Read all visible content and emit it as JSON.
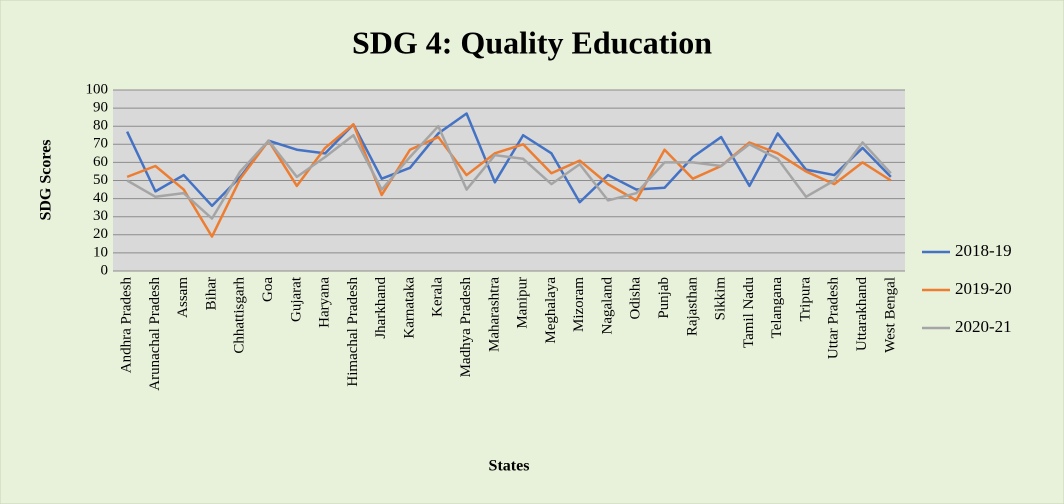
{
  "chart_data": {
    "type": "line",
    "title": "SDG 4: Quality Education",
    "y_label": "SDG Scores",
    "x_label": "States",
    "categories": [
      "Andhra Pradesh",
      "Arunachal Pradesh",
      "Assam",
      "Bihar",
      "Chhattisgarh",
      "Goa",
      "Gujarat",
      "Haryana",
      "Himachal Pradesh",
      "Jharkhand",
      "Karnataka",
      "Kerala",
      "Madhya Pradesh",
      "Maharashtra",
      "Manipur",
      "Meghalaya",
      "Mizoram",
      "Nagaland",
      "Odisha",
      "Punjab",
      "Rajasthan",
      "Sikkim",
      "Tamil Nadu",
      "Telangana",
      "Tripura",
      "Uttar Pradesh",
      "Uttarakhand",
      "West Bengal"
    ],
    "series": [
      {
        "name": "2018-19",
        "color": "#4472c4",
        "values": [
          77,
          44,
          53,
          36,
          52,
          72,
          67,
          65,
          81,
          51,
          57,
          76,
          87,
          49,
          75,
          65,
          38,
          53,
          45,
          46,
          63,
          74,
          47,
          76,
          56,
          53,
          68,
          52
        ]
      },
      {
        "name": "2019-20",
        "color": "#ed7d31",
        "values": [
          52,
          58,
          45,
          19,
          51,
          72,
          47,
          68,
          81,
          42,
          67,
          74,
          53,
          65,
          70,
          54,
          61,
          48,
          39,
          67,
          51,
          58,
          71,
          65,
          55,
          48,
          60,
          50
        ]
      },
      {
        "name": "2020-21",
        "color": "#a5a5a5",
        "values": [
          50,
          41,
          43,
          29,
          55,
          72,
          52,
          63,
          75,
          45,
          63,
          80,
          45,
          64,
          62,
          48,
          59,
          39,
          43,
          60,
          60,
          58,
          70,
          62,
          41,
          50,
          71,
          54
        ]
      }
    ],
    "ylim": [
      0,
      100
    ],
    "yticks": [
      0,
      10,
      20,
      30,
      40,
      50,
      60,
      70,
      80,
      90,
      100
    ],
    "grid": true,
    "legend": "right"
  }
}
